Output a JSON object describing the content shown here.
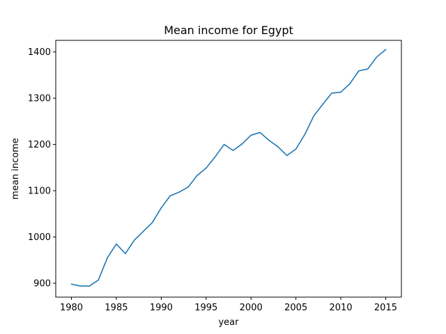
{
  "chart_data": {
    "type": "line",
    "title": "Mean income for Egypt",
    "xlabel": "year",
    "ylabel": "mean income",
    "xlim": [
      1978.25,
      2016.75
    ],
    "ylim": [
      870,
      1425
    ],
    "xticks": [
      1980,
      1985,
      1990,
      1995,
      2000,
      2005,
      2010,
      2015
    ],
    "yticks": [
      900,
      1000,
      1100,
      1200,
      1300,
      1400
    ],
    "grid": false,
    "series": [
      {
        "color": "#1f77b4",
        "x": [
          1980,
          1981,
          1982,
          1983,
          1984,
          1985,
          1986,
          1987,
          1988,
          1989,
          1990,
          1991,
          1992,
          1993,
          1994,
          1995,
          1996,
          1997,
          1998,
          1999,
          2000,
          2001,
          2002,
          2003,
          2004,
          2005,
          2006,
          2007,
          2008,
          2009,
          2010,
          2011,
          2012,
          2013,
          2014,
          2015
        ],
        "y": [
          898,
          894,
          894,
          907,
          955,
          985,
          964,
          993,
          1012,
          1031,
          1063,
          1089,
          1097,
          1108,
          1133,
          1149,
          1173,
          1200,
          1187,
          1201,
          1220,
          1226,
          1209,
          1195,
          1176,
          1190,
          1222,
          1262,
          1287,
          1311,
          1313,
          1331,
          1359,
          1363,
          1389,
          1405
        ]
      }
    ]
  }
}
